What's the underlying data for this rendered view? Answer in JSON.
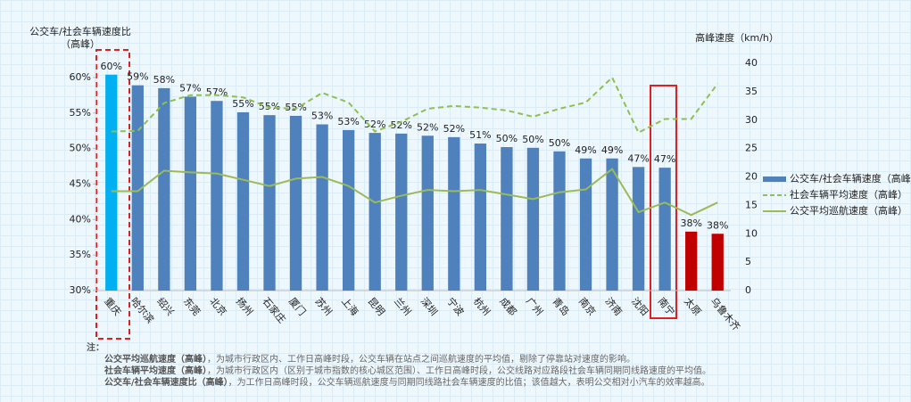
{
  "chart_data": {
    "type": "bar",
    "y_label": [
      "公交车/社会车辆速度比",
      "（高峰）"
    ],
    "y2_label": "高峰速度（km/h）",
    "categories": [
      "重庆",
      "哈尔滨",
      "绍兴",
      "东莞",
      "北京",
      "扬州",
      "石家庄",
      "厦门",
      "苏州",
      "上海",
      "昆明",
      "兰州",
      "深圳",
      "宁波",
      "杭州",
      "成都",
      "广州",
      "青岛",
      "南京",
      "济南",
      "沈阳",
      "南宁",
      "太原",
      "乌鲁木齐"
    ],
    "series": [
      {
        "name": "公交车/社会车辆速度（高峰）",
        "type": "bar",
        "color": "#4f81bd",
        "colors": [
          "#00b0f0",
          "#4f81bd",
          "#4f81bd",
          "#4f81bd",
          "#4f81bd",
          "#4f81bd",
          "#4f81bd",
          "#4f81bd",
          "#4f81bd",
          "#4f81bd",
          "#4f81bd",
          "#4f81bd",
          "#4f81bd",
          "#4f81bd",
          "#4f81bd",
          "#4f81bd",
          "#4f81bd",
          "#4f81bd",
          "#4f81bd",
          "#4f81bd",
          "#4f81bd",
          "#4f81bd",
          "#c00000",
          "#c00000"
        ],
        "values": [
          60.4,
          58.9,
          58.5,
          57.3,
          56.7,
          55.1,
          54.7,
          54.6,
          53.4,
          52.6,
          52.2,
          52.1,
          51.8,
          51.6,
          50.7,
          50.2,
          50.1,
          49.6,
          48.6,
          48.6,
          47.4,
          47.3,
          38.3,
          38.0
        ],
        "value_labels": [
          "60%",
          "59%",
          "58%",
          "57%",
          "57%",
          "55%",
          "55%",
          "55%",
          "53%",
          "53%",
          "52%",
          "52%",
          "52%",
          "52%",
          "51%",
          "50%",
          "50%",
          "50%",
          "49%",
          "49%",
          "47%",
          "47%",
          "38%",
          "38%"
        ]
      },
      {
        "name": "社会车辆平均速度（高峰）",
        "type": "line",
        "axis": "y2",
        "dashed": true,
        "color": "#8fc050",
        "values": [
          28,
          28.1,
          33,
          34.4,
          34.4,
          34,
          32.2,
          32,
          34.8,
          33.1,
          28,
          29.7,
          32,
          32.5,
          32.2,
          31.7,
          30.6,
          32,
          33.1,
          37.5,
          27.8,
          30.2,
          30.2,
          36.4
        ]
      },
      {
        "name": "公交平均巡航速度（高峰）",
        "type": "line",
        "axis": "y2",
        "dashed": false,
        "color": "#9bbb59",
        "values": [
          17.5,
          17.5,
          21.1,
          20.8,
          20.6,
          19.5,
          18.4,
          19.7,
          20,
          18.4,
          15.5,
          16.7,
          17.7,
          17.5,
          17.7,
          16.9,
          16.1,
          17.3,
          17.8,
          21.4,
          13.8,
          15.5,
          13.3,
          15.5
        ]
      }
    ],
    "ylim": [
      30,
      62
    ],
    "yticks": [
      {
        "value": 30,
        "label": "30%"
      },
      {
        "value": 35,
        "label": "35%"
      },
      {
        "value": 40,
        "label": "40%"
      },
      {
        "value": 45,
        "label": "45%"
      },
      {
        "value": 50,
        "label": "50%"
      },
      {
        "value": 55,
        "label": "55%"
      },
      {
        "value": 60,
        "label": "60%"
      }
    ],
    "y2lim": [
      0,
      40
    ],
    "y2ticks": [
      0,
      5,
      10,
      15,
      20,
      25,
      30,
      35,
      40
    ],
    "grid": false,
    "legend": "right"
  },
  "notes": {
    "label": "注：",
    "items": [
      {
        "term": "公交平均巡航速度（高峰）",
        "text": "，为城市行政区内、工作日高峰时段，公交车辆在站点之间巡航速度的平均值，剔除了停靠站对速度的影响。"
      },
      {
        "term": "社会车辆平均速度（高峰）",
        "text": "，为城市行政区内（区别于城市指数的核心城区范围）、工作日高峰时段，公交线路对应路段社会车辆同期同线路速度的平均值。"
      },
      {
        "term": "公交车/社会车辆速度比（高峰）",
        "text": "，为工作日高峰时段，公交车辆巡航速度与同期同线路社会车辆速度的比值；该值越大，表明公交相对小汽车的效率越高。"
      }
    ]
  }
}
